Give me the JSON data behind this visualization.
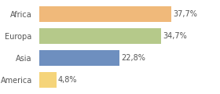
{
  "categories": [
    "Africa",
    "Europa",
    "Asia",
    "America"
  ],
  "values": [
    37.7,
    34.7,
    22.8,
    4.8
  ],
  "labels": [
    "37,7%",
    "34,7%",
    "22,8%",
    "4,8%"
  ],
  "bar_colors": [
    "#f0b97a",
    "#b5c98a",
    "#6e8fbf",
    "#f5d47a"
  ],
  "background_color": "#ffffff",
  "xlim": [
    0,
    44
  ],
  "label_fontsize": 7.0,
  "tick_fontsize": 7.0,
  "bar_height": 0.72
}
